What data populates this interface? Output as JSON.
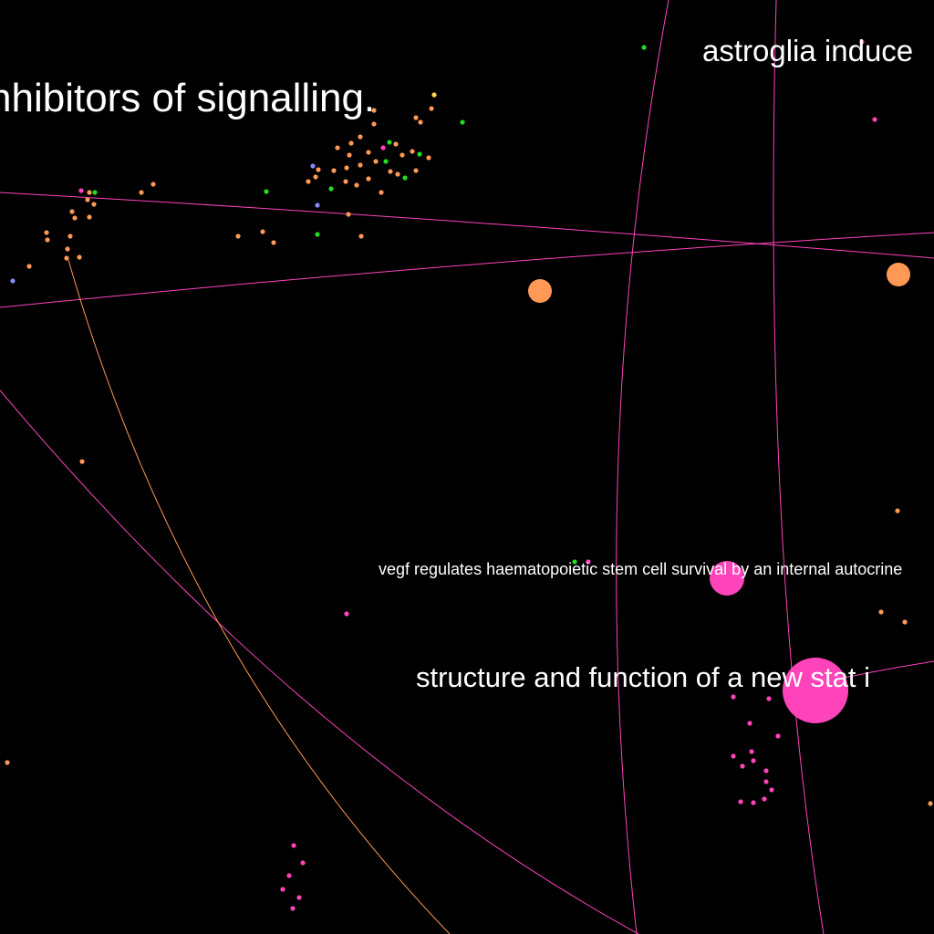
{
  "colors": {
    "background": "#000000",
    "pink": "#ff44bb",
    "orange": "#ff9955",
    "green": "#22dd22",
    "violet": "#8888ff",
    "yellow": "#ffdd44",
    "label": "#ffffff"
  },
  "labels": {
    "signalling": "nhibitors of signalling.",
    "astroglia": "astroglia induce",
    "vegf": "vegf regulates haematopoietic stem cell survival by an internal autocrine",
    "stat": "structure and function of a new stat i"
  }
}
